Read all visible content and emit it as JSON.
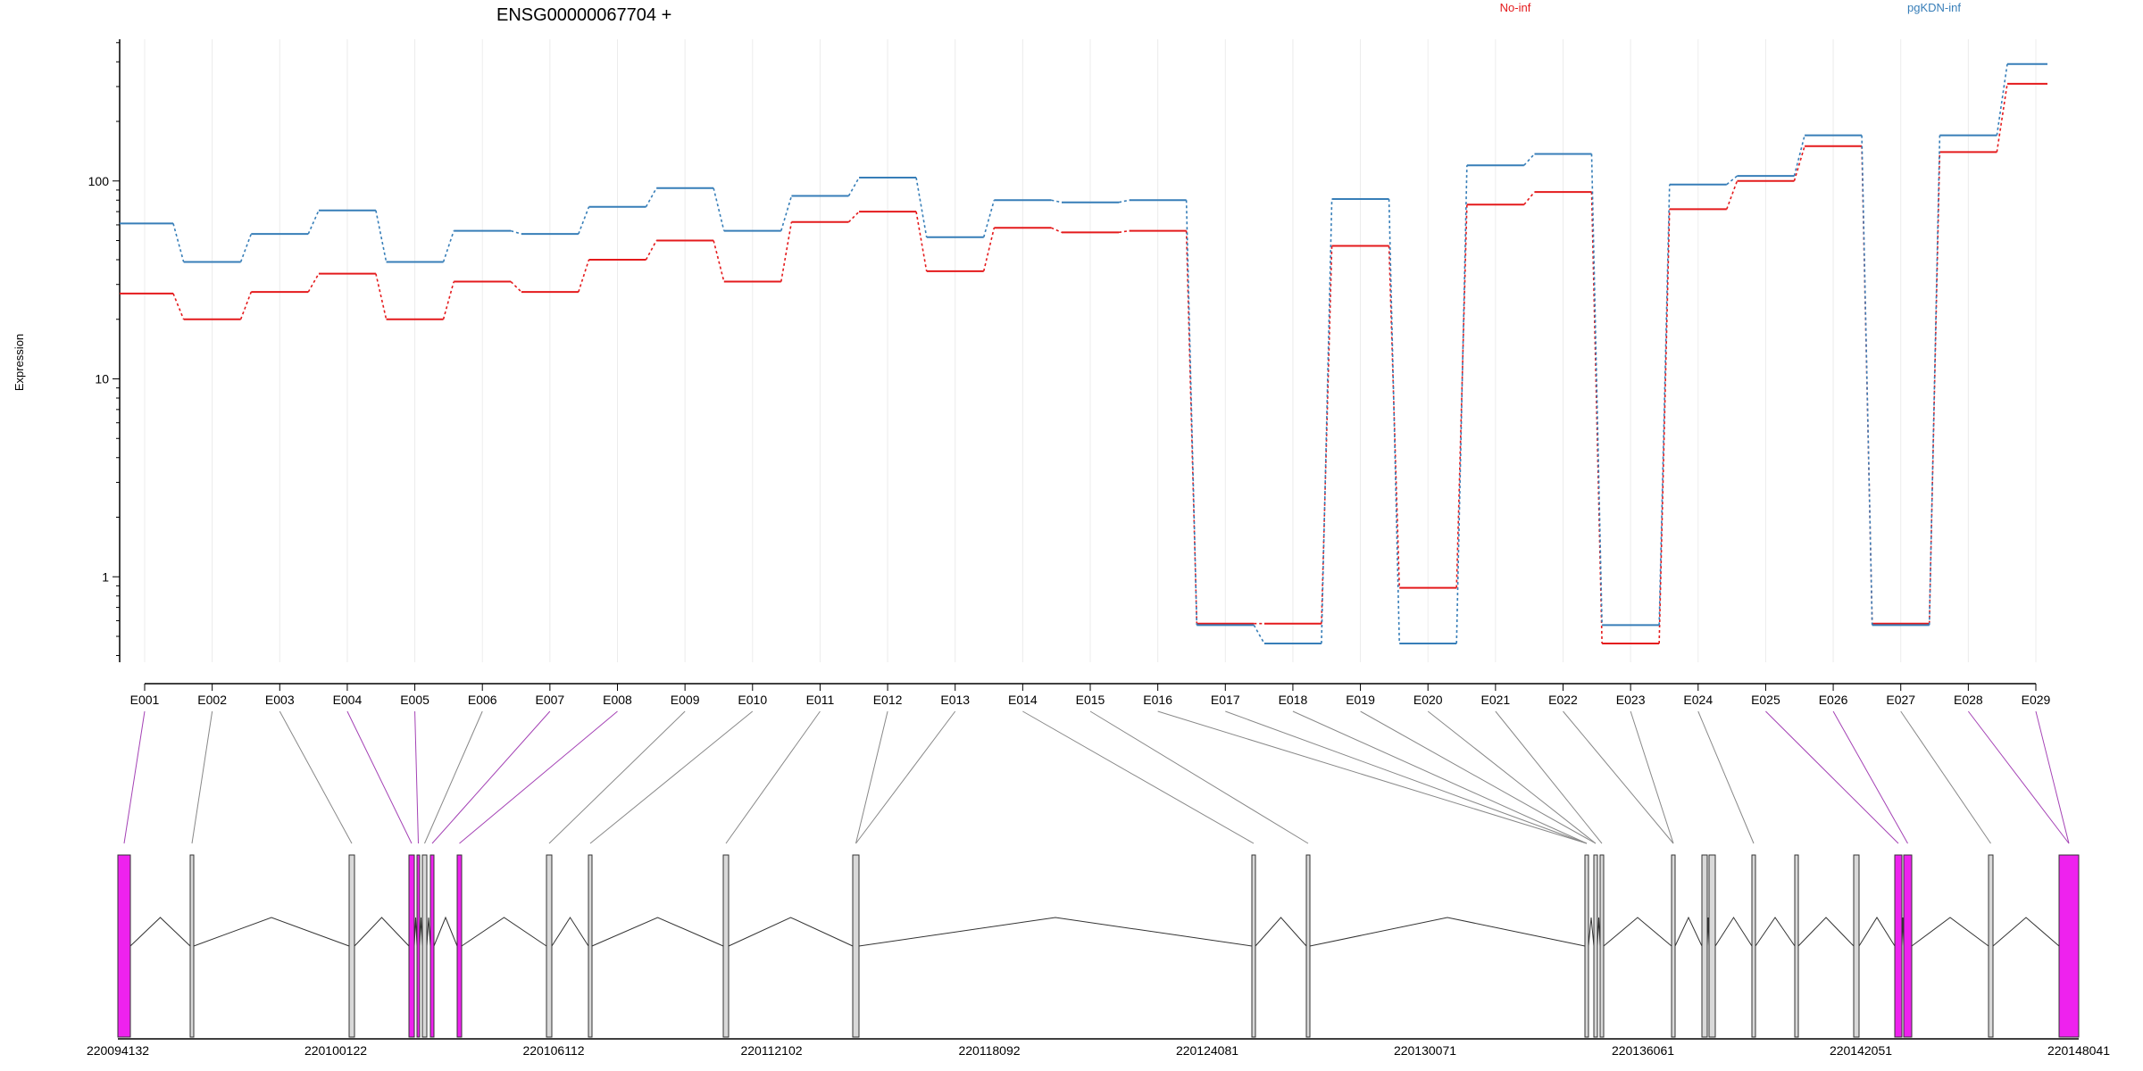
{
  "chart_data": {
    "type": "line",
    "title": "ENSG00000067704 +",
    "ylabel": "Expression",
    "y_scale": "log",
    "ylim": [
      0.37,
      520
    ],
    "y_ticks": [
      {
        "v": 1,
        "label": "1"
      },
      {
        "v": 10,
        "label": "10"
      },
      {
        "v": 100,
        "label": "100"
      }
    ],
    "grid": "vertical",
    "legend_placement": "top",
    "categories": [
      "E001",
      "E002",
      "E003",
      "E004",
      "E005",
      "E006",
      "E007",
      "E008",
      "E009",
      "E010",
      "E011",
      "E012",
      "E013",
      "E014",
      "E015",
      "E016",
      "E017",
      "E018",
      "E019",
      "E020",
      "E021",
      "E022",
      "E023",
      "E024",
      "E025",
      "E026",
      "E027",
      "E028",
      "E029"
    ],
    "series": [
      {
        "name": "No-inf",
        "color": "#e41a1c",
        "values": [
          27,
          20,
          27.5,
          34,
          20,
          31,
          27.5,
          40,
          50,
          31,
          62,
          70,
          35,
          58,
          55,
          56,
          0.58,
          0.58,
          47,
          0.88,
          76,
          88,
          0.46,
          72,
          100,
          150,
          0.58,
          140,
          310
        ]
      },
      {
        "name": "pgKDN-inf",
        "color": "#377eb8",
        "values": [
          61,
          39,
          54,
          71,
          39,
          56,
          54,
          74,
          92,
          56,
          84,
          104,
          52,
          80,
          78,
          80,
          0.57,
          0.46,
          81,
          0.46,
          120,
          137,
          0.57,
          96,
          106,
          170,
          0.57,
          170,
          390
        ]
      }
    ],
    "exons": {
      "kind": [
        "dex",
        "plain",
        "plain",
        "dex",
        "dex",
        "plain",
        "dex",
        "dex",
        "plain",
        "plain",
        "plain",
        "plain",
        "plain",
        "plain",
        "plain",
        "plain",
        "plain",
        "plain",
        "plain",
        "plain",
        "plain",
        "plain",
        "plain",
        "plain",
        "dex",
        "dex",
        "plain",
        "dex",
        "dex"
      ],
      "coord_min": 220094132,
      "coord_max": 220148041,
      "coord_ticks": [
        "220094132",
        "220100122",
        "220106112",
        "220112102",
        "220118092",
        "220124081",
        "220130071",
        "220136061",
        "220142051",
        "220148041"
      ]
    },
    "colors": {
      "dex": "#ee22ee",
      "plain": "#d9d9d9"
    }
  }
}
